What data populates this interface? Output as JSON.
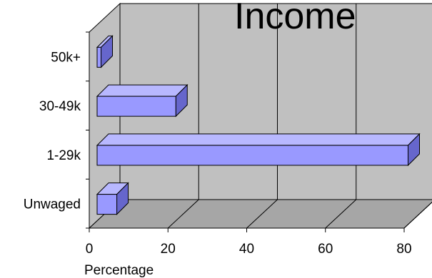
{
  "chart_data": {
    "type": "bar",
    "orientation": "horizontal",
    "three_d": true,
    "title": "Income",
    "xlabel": "Percentage",
    "ylabel": "",
    "categories": [
      "Unwaged",
      "1-29k",
      "30-49k",
      "50k+"
    ],
    "values": [
      5,
      79,
      20,
      1
    ],
    "xlim": [
      0,
      80
    ],
    "xticks": [
      "0",
      "20",
      "40",
      "60",
      "80"
    ],
    "grid": true,
    "legend": "none",
    "colors": {
      "bar_front": "#9999ff",
      "bar_top": "#b8b8ff",
      "bar_side": "#6666cc",
      "wall": "#c0c0c0",
      "floor": "#a6a6a6"
    }
  }
}
